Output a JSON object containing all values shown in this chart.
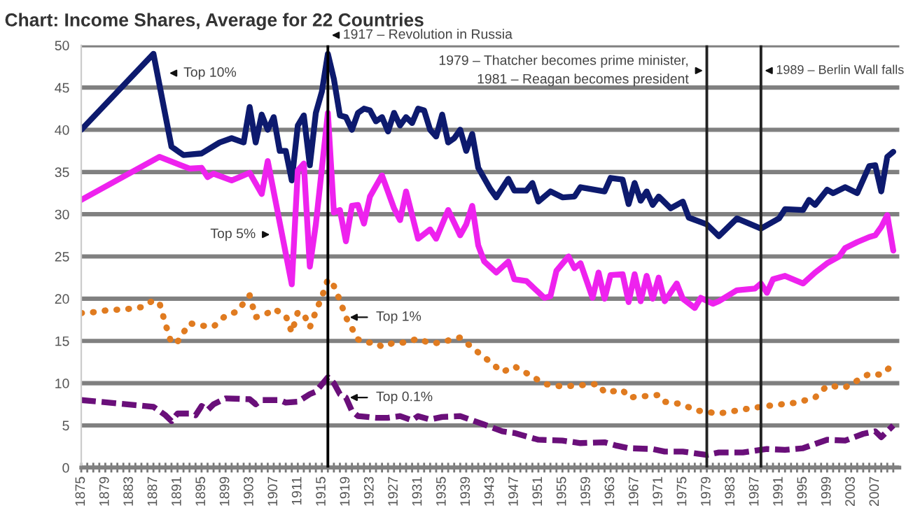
{
  "chart_data": {
    "type": "line",
    "title": "Chart: Income Shares, Average for 22 Countries",
    "xlim": [
      1875,
      2011
    ],
    "ylim": [
      0,
      50
    ],
    "yticks": [
      0,
      5,
      10,
      15,
      20,
      25,
      30,
      35,
      40,
      45,
      50
    ],
    "xticks": [
      1875,
      {
        "value": 1876,
        "label": null
      },
      {
        "value": 1877,
        "label": null
      },
      {
        "value": 1878,
        "label": null
      },
      1879,
      {
        "value": 1880,
        "label": null
      },
      {
        "value": 1881,
        "label": null
      },
      {
        "value": 1882,
        "label": null
      },
      1883,
      {
        "value": 1884,
        "label": null
      },
      {
        "value": 1885,
        "label": null
      },
      {
        "value": 1886,
        "label": null
      },
      1887,
      {
        "value": 1888,
        "label": null
      },
      {
        "value": 1889,
        "label": null
      },
      {
        "value": 1890,
        "label": null
      },
      1891,
      {
        "value": 1892,
        "label": null
      },
      {
        "value": 1893,
        "label": null
      },
      {
        "value": 1894,
        "label": null
      },
      1895,
      {
        "value": 1896,
        "label": null
      },
      {
        "value": 1897,
        "label": null
      },
      {
        "value": 1898,
        "label": null
      },
      1899,
      {
        "value": 1900,
        "label": null
      },
      {
        "value": 1901,
        "label": null
      },
      {
        "value": 1902,
        "label": null
      },
      1903,
      {
        "value": 1904,
        "label": null
      },
      {
        "value": 1905,
        "label": null
      },
      {
        "value": 1906,
        "label": null
      },
      1907,
      {
        "value": 1908,
        "label": null
      },
      {
        "value": 1909,
        "label": null
      },
      {
        "value": 1910,
        "label": null
      },
      1911,
      {
        "value": 1912,
        "label": null
      },
      {
        "value": 1913,
        "label": null
      },
      {
        "value": 1914,
        "label": null
      },
      1915,
      {
        "value": 1916,
        "label": null
      },
      {
        "value": 1917,
        "label": null
      },
      {
        "value": 1918,
        "label": null
      },
      1919,
      {
        "value": 1920,
        "label": null
      },
      {
        "value": 1921,
        "label": null
      },
      {
        "value": 1922,
        "label": null
      },
      1923,
      {
        "value": 1924,
        "label": null
      },
      {
        "value": 1925,
        "label": null
      },
      {
        "value": 1926,
        "label": null
      },
      1927,
      {
        "value": 1928,
        "label": null
      },
      {
        "value": 1929,
        "label": null
      },
      {
        "value": 1930,
        "label": null
      },
      1931,
      {
        "value": 1932,
        "label": null
      },
      {
        "value": 1933,
        "label": null
      },
      {
        "value": 1934,
        "label": null
      },
      1935,
      {
        "value": 1936,
        "label": null
      },
      {
        "value": 1937,
        "label": null
      },
      {
        "value": 1938,
        "label": null
      },
      1939,
      {
        "value": 1940,
        "label": null
      },
      {
        "value": 1941,
        "label": null
      },
      {
        "value": 1942,
        "label": null
      },
      1943,
      {
        "value": 1944,
        "label": null
      },
      {
        "value": 1945,
        "label": null
      },
      {
        "value": 1946,
        "label": null
      },
      1947,
      {
        "value": 1948,
        "label": null
      },
      {
        "value": 1949,
        "label": null
      },
      {
        "value": 1950,
        "label": null
      },
      1951,
      {
        "value": 1952,
        "label": null
      },
      {
        "value": 1953,
        "label": null
      },
      {
        "value": 1954,
        "label": null
      },
      1955,
      {
        "value": 1956,
        "label": null
      },
      {
        "value": 1957,
        "label": null
      },
      {
        "value": 1958,
        "label": null
      },
      1959,
      {
        "value": 1960,
        "label": null
      },
      {
        "value": 1961,
        "label": null
      },
      {
        "value": 1962,
        "label": null
      },
      1963,
      {
        "value": 1964,
        "label": null
      },
      {
        "value": 1965,
        "label": null
      },
      {
        "value": 1966,
        "label": null
      },
      1967,
      {
        "value": 1968,
        "label": null
      },
      {
        "value": 1969,
        "label": null
      },
      {
        "value": 1970,
        "label": null
      },
      1971,
      {
        "value": 1972,
        "label": null
      },
      {
        "value": 1973,
        "label": null
      },
      {
        "value": 1974,
        "label": null
      },
      1975,
      {
        "value": 1976,
        "label": null
      },
      {
        "value": 1977,
        "label": null
      },
      {
        "value": 1978,
        "label": null
      },
      1979,
      {
        "value": 1980,
        "label": null
      },
      {
        "value": 1981,
        "label": null
      },
      {
        "value": 1982,
        "label": null
      },
      1983,
      {
        "value": 1984,
        "label": null
      },
      {
        "value": 1985,
        "label": null
      },
      {
        "value": 1986,
        "label": null
      },
      1987,
      {
        "value": 1988,
        "label": null
      },
      {
        "value": 1989,
        "label": null
      },
      {
        "value": 1990,
        "label": null
      },
      1991,
      {
        "value": 1992,
        "label": null
      },
      {
        "value": 1993,
        "label": null
      },
      {
        "value": 1994,
        "label": null
      },
      1995,
      {
        "value": 1996,
        "label": null
      },
      {
        "value": 1997,
        "label": null
      },
      {
        "value": 1998,
        "label": null
      },
      1999,
      {
        "value": 2000,
        "label": null
      },
      {
        "value": 2001,
        "label": null
      },
      {
        "value": 2002,
        "label": null
      },
      2003,
      {
        "value": 2004,
        "label": null
      },
      {
        "value": 2005,
        "label": null
      },
      {
        "value": 2006,
        "label": null
      },
      2007,
      {
        "value": 2008,
        "label": null
      },
      {
        "value": 2009,
        "label": null
      },
      {
        "value": 2010,
        "label": null
      }
    ],
    "grid": "y",
    "marker": "none",
    "series": [
      {
        "color": "#0d1a6e",
        "line_style": "solid",
        "x": [
          1875,
          1887,
          1890,
          1892,
          1895,
          1898,
          1900,
          1902,
          1903,
          1904,
          1905,
          1906,
          1907,
          1908,
          1909,
          1910,
          1911,
          1912,
          1913,
          1914,
          1915,
          1916,
          1917,
          1918,
          1919,
          1920,
          1921,
          1922,
          1923,
          1924,
          1925,
          1926,
          1927,
          1928,
          1929,
          1930,
          1931,
          1932,
          1933,
          1934,
          1935,
          1936,
          1937,
          1938,
          1939,
          1940,
          1941,
          1943,
          1944,
          1946,
          1947,
          1949,
          1950,
          1951,
          1953,
          1955,
          1957,
          1958,
          1962,
          1963,
          1965,
          1966,
          1967,
          1968,
          1969,
          1970,
          1971,
          1973,
          1975,
          1976,
          1979,
          1981,
          1984,
          1988,
          1991,
          1992,
          1995,
          1996,
          1997,
          1999,
          2000,
          2002,
          2004,
          2006,
          2007,
          2008,
          2009,
          2010
        ],
        "values": [
          40,
          49,
          38,
          37,
          37.2,
          38.5,
          39,
          38.5,
          42.7,
          38.5,
          41.8,
          40,
          41.5,
          37.5,
          37.5,
          34,
          40.5,
          41.7,
          35.8,
          42,
          44.5,
          49,
          46,
          41.7,
          41.5,
          40,
          42,
          42.5,
          42.3,
          41,
          41.5,
          39.8,
          42,
          40.5,
          41.5,
          40.8,
          42.5,
          42.3,
          40,
          39.2,
          41.8,
          38.5,
          39,
          40,
          37.5,
          39.5,
          35.5,
          33,
          32,
          34.2,
          32.8,
          32.8,
          33.7,
          31.5,
          32.7,
          32,
          32.1,
          33.2,
          32.7,
          34.3,
          34.1,
          31.2,
          33.7,
          31.6,
          32.7,
          31.1,
          32.1,
          30.7,
          31.5,
          29.6,
          28.8,
          27.4,
          29.5,
          28.3,
          29.5,
          30.6,
          30.5,
          31.7,
          31.1,
          32.9,
          32.5,
          33.2,
          32.5,
          35.7,
          35.8,
          32.7,
          36.8,
          37.4
        ]
      },
      {
        "color": "#ee22ee",
        "line_style": "solid",
        "x": [
          1875,
          1888,
          1893,
          1895,
          1896,
          1897,
          1900,
          1903,
          1905,
          1906,
          1910,
          1911,
          1912,
          1913,
          1914,
          1916,
          1917,
          1918,
          1919,
          1920,
          1921,
          1922,
          1923,
          1925,
          1927,
          1928,
          1929,
          1931,
          1933,
          1934,
          1936,
          1938,
          1939,
          1940,
          1941,
          1942,
          1944,
          1946,
          1947,
          1949,
          1952,
          1953,
          1954,
          1956,
          1957,
          1958,
          1960,
          1961,
          1962,
          1963,
          1965,
          1966,
          1967,
          1968,
          1969,
          1970,
          1971,
          1972,
          1974,
          1975,
          1977,
          1978,
          1980,
          1981,
          1984,
          1987,
          1988,
          1989,
          1990,
          1992,
          1995,
          1997,
          1999,
          2001,
          2002,
          2004,
          2006,
          2007,
          2008,
          2009,
          2010
        ],
        "values": [
          31.7,
          36.8,
          35.4,
          35.5,
          34.4,
          34.8,
          34,
          34.9,
          32.4,
          36.3,
          21.7,
          35.2,
          36,
          23.8,
          28.8,
          42,
          30.2,
          30.5,
          26.8,
          31,
          31.1,
          28.9,
          32.1,
          34.6,
          30.7,
          29.3,
          32.7,
          27.1,
          28.2,
          27.1,
          30.5,
          27.5,
          28.8,
          31,
          26.3,
          24.4,
          23.1,
          24.4,
          22.3,
          22.1,
          20.1,
          20.3,
          23.3,
          25,
          23.6,
          24.2,
          20.1,
          23.1,
          20,
          22.8,
          22.9,
          19.6,
          22.9,
          19.7,
          22.7,
          20,
          22.5,
          19.7,
          21.8,
          20,
          18.9,
          20.1,
          19.4,
          19.7,
          21,
          21.2,
          21.8,
          20.7,
          22.3,
          22.7,
          21.8,
          23.1,
          24.2,
          25,
          26,
          26.7,
          27.3,
          27.5,
          28.5,
          29.9,
          25.7
        ]
      },
      {
        "color": "#e07b20",
        "line_style": "dotted",
        "x": [
          1875,
          1877,
          1879,
          1881,
          1883,
          1885,
          1887,
          1888,
          1889,
          1890,
          1891,
          1892,
          1893,
          1895,
          1897,
          1899,
          1901,
          1902,
          1903,
          1904,
          1906,
          1907,
          1909,
          1910,
          1911,
          1912,
          1913,
          1914,
          1915,
          1916,
          1917,
          1918,
          1919,
          1920,
          1921,
          1922,
          1924,
          1925,
          1927,
          1929,
          1931,
          1933,
          1935,
          1937,
          1938,
          1940,
          1943,
          1945,
          1947,
          1950,
          1952,
          1955,
          1961,
          1962,
          1965,
          1966,
          1971,
          1972,
          1975,
          1977,
          1981,
          1986,
          1989,
          1994,
          1997,
          1999,
          2002,
          2004,
          2006,
          2008,
          2010
        ],
        "values": [
          18.3,
          18.4,
          18.6,
          18.7,
          18.8,
          19,
          19.8,
          19.5,
          17,
          14.7,
          14.9,
          16,
          17.1,
          16.8,
          16.7,
          18,
          18.5,
          19.5,
          20.4,
          17.8,
          18.3,
          18.8,
          18,
          16,
          18.4,
          18.2,
          16.6,
          18.5,
          20.2,
          22.3,
          21.5,
          19.8,
          17.8,
          16.5,
          15.2,
          14.8,
          14.8,
          14.3,
          14.8,
          14.8,
          15.3,
          14.7,
          14.8,
          15.3,
          15.4,
          14.2,
          12.5,
          11.3,
          12,
          10.8,
          9.9,
          9.6,
          9.9,
          8.9,
          9.2,
          8.3,
          8.6,
          7.8,
          7.5,
          6.8,
          6.4,
          7,
          7.3,
          7.7,
          8.3,
          9.7,
          9.5,
          10.3,
          11.1,
          11,
          12.2
        ]
      },
      {
        "color": "#6a0f7a",
        "line_style": "dashed",
        "x": [
          1875,
          1887,
          1889,
          1890,
          1891,
          1893,
          1894,
          1895,
          1896,
          1897,
          1899,
          1903,
          1904,
          1905,
          1908,
          1909,
          1911,
          1913,
          1914,
          1916,
          1917,
          1918,
          1919,
          1920,
          1921,
          1924,
          1926,
          1928,
          1930,
          1931,
          1933,
          1935,
          1938,
          1942,
          1945,
          1947,
          1951,
          1955,
          1958,
          1962,
          1964,
          1966,
          1970,
          1972,
          1975,
          1979,
          1981,
          1985,
          1989,
          1992,
          1995,
          1999,
          2002,
          2005,
          2007,
          2008,
          2010
        ],
        "values": [
          8,
          7.2,
          6.2,
          5.5,
          6.4,
          6.4,
          6.2,
          7.3,
          6.8,
          7.5,
          8.2,
          8.1,
          7.5,
          8,
          8,
          7.7,
          7.8,
          8.7,
          9,
          10.7,
          10,
          8.7,
          8.3,
          6.7,
          6.1,
          5.9,
          5.9,
          6.1,
          5.6,
          6.1,
          5.7,
          6,
          6.1,
          5.1,
          4.3,
          4.1,
          3.3,
          3.2,
          2.9,
          3,
          2.6,
          2.3,
          2.2,
          1.9,
          1.9,
          1.5,
          1.8,
          1.8,
          2.2,
          2.1,
          2.3,
          3.3,
          3.2,
          4,
          4.3,
          3.6,
          5
        ]
      }
    ],
    "ref_lines": [
      {
        "axis": "x",
        "value": 1916,
        "label": "1917 – Revolution in Russia",
        "color": "#000000"
      },
      {
        "axis": "x",
        "value": 1979,
        "label": "1979 – Thatcher becomes prime minister,\n1981 – Reagan becomes president",
        "color": "#222222"
      },
      {
        "axis": "x",
        "value": 1988,
        "label": "1989 – Berlin Wall falls",
        "color": "#222222"
      }
    ],
    "annotations": [
      {
        "text": "Top 10%",
        "x": 1889,
        "y": 46.7
      },
      {
        "text": "Top 5%",
        "x": 1907,
        "y": 27.6
      },
      {
        "text": "Top 1%",
        "x": 1919,
        "y": 17.8
      },
      {
        "text": "Top 0.1%",
        "x": 1919,
        "y": 8.3
      }
    ]
  }
}
